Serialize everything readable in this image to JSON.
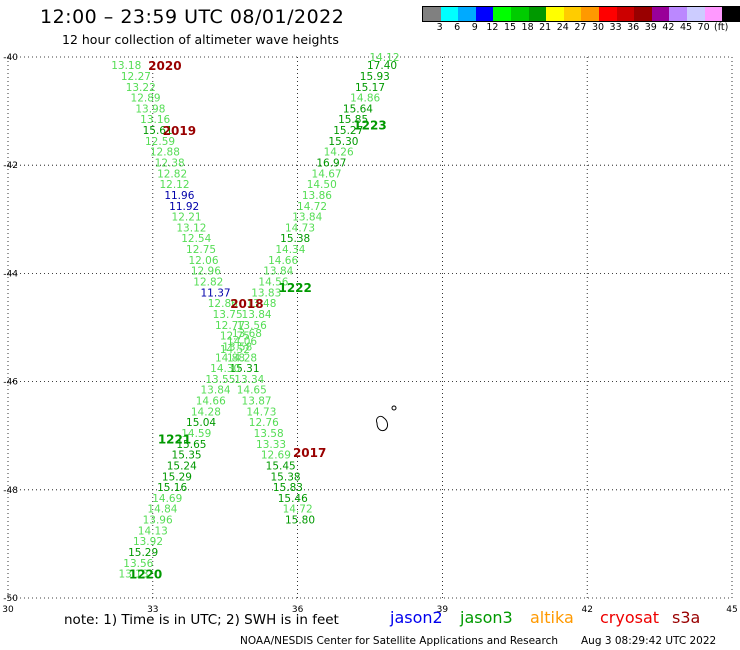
{
  "header": {
    "title": "12:00 – 23:59 UTC 08/01/2022",
    "subtitle": "12 hour collection of altimeter wave heights"
  },
  "colorbar": {
    "colors": [
      "#808080",
      "#00ffff",
      "#00aaff",
      "#0000ff",
      "#00ff00",
      "#00cc00",
      "#009900",
      "#ffff00",
      "#ffcc00",
      "#ff9900",
      "#ff0000",
      "#cc0000",
      "#990000",
      "#990099",
      "#bb88ff",
      "#ccccff",
      "#ff99ff",
      "#000000"
    ],
    "labels": [
      "3",
      "6",
      "9",
      "12",
      "15",
      "18",
      "21",
      "24",
      "27",
      "30",
      "33",
      "36",
      "39",
      "42",
      "45",
      "70",
      "(ft)"
    ]
  },
  "axes": {
    "lat_labels": [
      "-40",
      "-42",
      "-44",
      "-46",
      "-48",
      "-50"
    ],
    "lon_labels": [
      "30",
      "33",
      "36",
      "39",
      "42",
      "45"
    ]
  },
  "footer": {
    "note": "note:  1) Time is in UTC; 2) SWH is in feet",
    "credit": "NOAA/NESDIS Center for Satellite Applications and Research",
    "timestamp": "Aug  3 08:29:42 UTC 2022",
    "legend": [
      {
        "name": "jason2",
        "color": "#0000ee"
      },
      {
        "name": "jason3",
        "color": "#009900"
      },
      {
        "name": "altika",
        "color": "#ff9900"
      },
      {
        "name": "cryosat",
        "color": "#ee0000"
      },
      {
        "name": "s3a",
        "color": "#990000"
      }
    ]
  },
  "map_data": {
    "lon_range": [
      30,
      45
    ],
    "lat_range": [
      -50,
      -40
    ],
    "labels": [
      {
        "text": "13.18",
        "lon": 32.45,
        "lat": -40.15,
        "color": "#55dd55"
      },
      {
        "text": "12.27",
        "lon": 32.65,
        "lat": -40.35,
        "color": "#55dd55"
      },
      {
        "text": "13.22",
        "lon": 32.75,
        "lat": -40.55,
        "color": "#55dd55"
      },
      {
        "text": "12.89",
        "lon": 32.85,
        "lat": -40.75,
        "color": "#55dd55"
      },
      {
        "text": "13.98",
        "lon": 32.95,
        "lat": -40.95,
        "color": "#55dd55"
      },
      {
        "text": "13.16",
        "lon": 33.05,
        "lat": -41.15,
        "color": "#55dd55"
      },
      {
        "text": "15.61",
        "lon": 33.1,
        "lat": -41.35,
        "color": "#009900"
      },
      {
        "text": "12.59",
        "lon": 33.15,
        "lat": -41.55,
        "color": "#55dd55"
      },
      {
        "text": "12.88",
        "lon": 33.25,
        "lat": -41.75,
        "color": "#55dd55"
      },
      {
        "text": "12.38",
        "lon": 33.35,
        "lat": -41.95,
        "color": "#55dd55"
      },
      {
        "text": "12.82",
        "lon": 33.4,
        "lat": -42.15,
        "color": "#55dd55"
      },
      {
        "text": "12.12",
        "lon": 33.45,
        "lat": -42.35,
        "color": "#55dd55"
      },
      {
        "text": "11.96",
        "lon": 33.55,
        "lat": -42.55,
        "color": "#0000aa"
      },
      {
        "text": "11.92",
        "lon": 33.65,
        "lat": -42.75,
        "color": "#0000aa"
      },
      {
        "text": "12.21",
        "lon": 33.7,
        "lat": -42.95,
        "color": "#55dd55"
      },
      {
        "text": "13.12",
        "lon": 33.8,
        "lat": -43.15,
        "color": "#55dd55"
      },
      {
        "text": "12.54",
        "lon": 33.9,
        "lat": -43.35,
        "color": "#55dd55"
      },
      {
        "text": "12.75",
        "lon": 34.0,
        "lat": -43.55,
        "color": "#55dd55"
      },
      {
        "text": "12.06",
        "lon": 34.05,
        "lat": -43.75,
        "color": "#55dd55"
      },
      {
        "text": "12.96",
        "lon": 34.1,
        "lat": -43.95,
        "color": "#55dd55"
      },
      {
        "text": "12.82",
        "lon": 34.15,
        "lat": -44.15,
        "color": "#55dd55"
      },
      {
        "text": "11.37",
        "lon": 34.3,
        "lat": -44.35,
        "color": "#0000aa"
      },
      {
        "text": "12.86",
        "lon": 34.45,
        "lat": -44.55,
        "color": "#55dd55"
      },
      {
        "text": "13.75",
        "lon": 34.55,
        "lat": -44.75,
        "color": "#55dd55"
      },
      {
        "text": "12.77",
        "lon": 34.6,
        "lat": -44.95,
        "color": "#55dd55"
      },
      {
        "text": "12.75",
        "lon": 34.7,
        "lat": -45.15,
        "color": "#55dd55"
      },
      {
        "text": "13.58",
        "lon": 34.75,
        "lat": -45.35,
        "color": "#55dd55"
      },
      {
        "text": "14.28",
        "lon": 34.85,
        "lat": -45.55,
        "color": "#55dd55"
      },
      {
        "text": "15.31",
        "lon": 34.9,
        "lat": -45.75,
        "color": "#009900"
      },
      {
        "text": "13.34",
        "lon": 35.0,
        "lat": -45.95,
        "color": "#55dd55"
      },
      {
        "text": "14.65",
        "lon": 35.05,
        "lat": -46.15,
        "color": "#55dd55"
      },
      {
        "text": "13.87",
        "lon": 35.15,
        "lat": -46.35,
        "color": "#55dd55"
      },
      {
        "text": "14.73",
        "lon": 35.25,
        "lat": -46.55,
        "color": "#55dd55"
      },
      {
        "text": "12.76",
        "lon": 35.3,
        "lat": -46.75,
        "color": "#55dd55"
      },
      {
        "text": "13.58",
        "lon": 35.4,
        "lat": -46.95,
        "color": "#55dd55"
      },
      {
        "text": "13.33",
        "lon": 35.45,
        "lat": -47.15,
        "color": "#55dd55"
      },
      {
        "text": "12.69",
        "lon": 35.55,
        "lat": -47.35,
        "color": "#55dd55"
      },
      {
        "text": "15.45",
        "lon": 35.65,
        "lat": -47.55,
        "color": "#009900"
      },
      {
        "text": "15.38",
        "lon": 35.75,
        "lat": -47.75,
        "color": "#009900"
      },
      {
        "text": "15.83",
        "lon": 35.8,
        "lat": -47.95,
        "color": "#009900"
      },
      {
        "text": "15.46",
        "lon": 35.9,
        "lat": -48.15,
        "color": "#009900"
      },
      {
        "text": "14.72",
        "lon": 36.0,
        "lat": -48.35,
        "color": "#55dd55"
      },
      {
        "text": "15.80",
        "lon": 36.05,
        "lat": -48.55,
        "color": "#009900"
      },
      {
        "text": "14.12",
        "lon": 37.8,
        "lat": -40.0,
        "color": "#55dd55"
      },
      {
        "text": "17.40",
        "lon": 37.75,
        "lat": -40.15,
        "color": "#009900"
      },
      {
        "text": "15.93",
        "lon": 37.6,
        "lat": -40.35,
        "color": "#009900"
      },
      {
        "text": "15.17",
        "lon": 37.5,
        "lat": -40.55,
        "color": "#009900"
      },
      {
        "text": "14.86",
        "lon": 37.4,
        "lat": -40.75,
        "color": "#55dd55"
      },
      {
        "text": "15.64",
        "lon": 37.25,
        "lat": -40.95,
        "color": "#009900"
      },
      {
        "text": "15.85",
        "lon": 37.15,
        "lat": -41.15,
        "color": "#009900"
      },
      {
        "text": "15.27",
        "lon": 37.05,
        "lat": -41.35,
        "color": "#009900"
      },
      {
        "text": "15.30",
        "lon": 36.95,
        "lat": -41.55,
        "color": "#009900"
      },
      {
        "text": "14.26",
        "lon": 36.85,
        "lat": -41.75,
        "color": "#55dd55"
      },
      {
        "text": "16.97",
        "lon": 36.7,
        "lat": -41.95,
        "color": "#009900"
      },
      {
        "text": "14.67",
        "lon": 36.6,
        "lat": -42.15,
        "color": "#55dd55"
      },
      {
        "text": "14.50",
        "lon": 36.5,
        "lat": -42.35,
        "color": "#55dd55"
      },
      {
        "text": "13.86",
        "lon": 36.4,
        "lat": -42.55,
        "color": "#55dd55"
      },
      {
        "text": "14.72",
        "lon": 36.3,
        "lat": -42.75,
        "color": "#55dd55"
      },
      {
        "text": "13.84",
        "lon": 36.2,
        "lat": -42.95,
        "color": "#55dd55"
      },
      {
        "text": "14.73",
        "lon": 36.05,
        "lat": -43.15,
        "color": "#55dd55"
      },
      {
        "text": "15.38",
        "lon": 35.95,
        "lat": -43.35,
        "color": "#009900"
      },
      {
        "text": "14.34",
        "lon": 35.85,
        "lat": -43.55,
        "color": "#55dd55"
      },
      {
        "text": "14.66",
        "lon": 35.7,
        "lat": -43.75,
        "color": "#55dd55"
      },
      {
        "text": "13.84",
        "lon": 35.6,
        "lat": -43.95,
        "color": "#55dd55"
      },
      {
        "text": "14.56",
        "lon": 35.5,
        "lat": -44.15,
        "color": "#55dd55"
      },
      {
        "text": "13.83",
        "lon": 35.35,
        "lat": -44.35,
        "color": "#55dd55"
      },
      {
        "text": "13.48",
        "lon": 35.25,
        "lat": -44.55,
        "color": "#55dd55"
      },
      {
        "text": "13.84",
        "lon": 35.15,
        "lat": -44.75,
        "color": "#55dd55"
      },
      {
        "text": "13.56",
        "lon": 35.05,
        "lat": -44.95,
        "color": "#55dd55"
      },
      {
        "text": "13.68",
        "lon": 34.95,
        "lat": -45.1,
        "color": "#55dd55"
      },
      {
        "text": "14.06",
        "lon": 34.85,
        "lat": -45.25,
        "color": "#55dd55"
      },
      {
        "text": "14.52",
        "lon": 34.7,
        "lat": -45.4,
        "color": "#55dd55"
      },
      {
        "text": "14.88",
        "lon": 34.6,
        "lat": -45.55,
        "color": "#55dd55"
      },
      {
        "text": "14.30",
        "lon": 34.5,
        "lat": -45.75,
        "color": "#55dd55"
      },
      {
        "text": "13.55",
        "lon": 34.4,
        "lat": -45.95,
        "color": "#55dd55"
      },
      {
        "text": "13.84",
        "lon": 34.3,
        "lat": -46.15,
        "color": "#55dd55"
      },
      {
        "text": "14.66",
        "lon": 34.2,
        "lat": -46.35,
        "color": "#55dd55"
      },
      {
        "text": "14.28",
        "lon": 34.1,
        "lat": -46.55,
        "color": "#55dd55"
      },
      {
        "text": "15.04",
        "lon": 34.0,
        "lat": -46.75,
        "color": "#009900"
      },
      {
        "text": "14.59",
        "lon": 33.9,
        "lat": -46.95,
        "color": "#55dd55"
      },
      {
        "text": "15.65",
        "lon": 33.8,
        "lat": -47.15,
        "color": "#009900"
      },
      {
        "text": "15.35",
        "lon": 33.7,
        "lat": -47.35,
        "color": "#009900"
      },
      {
        "text": "15.24",
        "lon": 33.6,
        "lat": -47.55,
        "color": "#009900"
      },
      {
        "text": "15.29",
        "lon": 33.5,
        "lat": -47.75,
        "color": "#009900"
      },
      {
        "text": "15.16",
        "lon": 33.4,
        "lat": -47.95,
        "color": "#009900"
      },
      {
        "text": "14.69",
        "lon": 33.3,
        "lat": -48.15,
        "color": "#55dd55"
      },
      {
        "text": "14.84",
        "lon": 33.2,
        "lat": -48.35,
        "color": "#55dd55"
      },
      {
        "text": "13.96",
        "lon": 33.1,
        "lat": -48.55,
        "color": "#55dd55"
      },
      {
        "text": "14.13",
        "lon": 33.0,
        "lat": -48.75,
        "color": "#55dd55"
      },
      {
        "text": "13.92",
        "lon": 32.9,
        "lat": -48.95,
        "color": "#55dd55"
      },
      {
        "text": "15.29",
        "lon": 32.8,
        "lat": -49.15,
        "color": "#009900"
      },
      {
        "text": "13.56",
        "lon": 32.7,
        "lat": -49.35,
        "color": "#55dd55"
      },
      {
        "text": "13.13",
        "lon": 32.6,
        "lat": -49.55,
        "color": "#55dd55"
      }
    ],
    "time_labels": [
      {
        "text": "2020",
        "lon": 33.25,
        "lat": -40.15,
        "color": "#990000"
      },
      {
        "text": "2019",
        "lon": 33.55,
        "lat": -41.35,
        "color": "#990000"
      },
      {
        "text": "1223",
        "lon": 37.5,
        "lat": -41.25,
        "color": "#009900"
      },
      {
        "text": "1222",
        "lon": 35.95,
        "lat": -44.25,
        "color": "#009900"
      },
      {
        "text": "2018",
        "lon": 34.95,
        "lat": -44.55,
        "color": "#990000"
      },
      {
        "text": "1221",
        "lon": 33.45,
        "lat": -47.05,
        "color": "#009900"
      },
      {
        "text": "2017",
        "lon": 36.25,
        "lat": -47.3,
        "color": "#990000"
      },
      {
        "text": "1220",
        "lon": 32.85,
        "lat": -49.55,
        "color": "#009900"
      }
    ]
  }
}
